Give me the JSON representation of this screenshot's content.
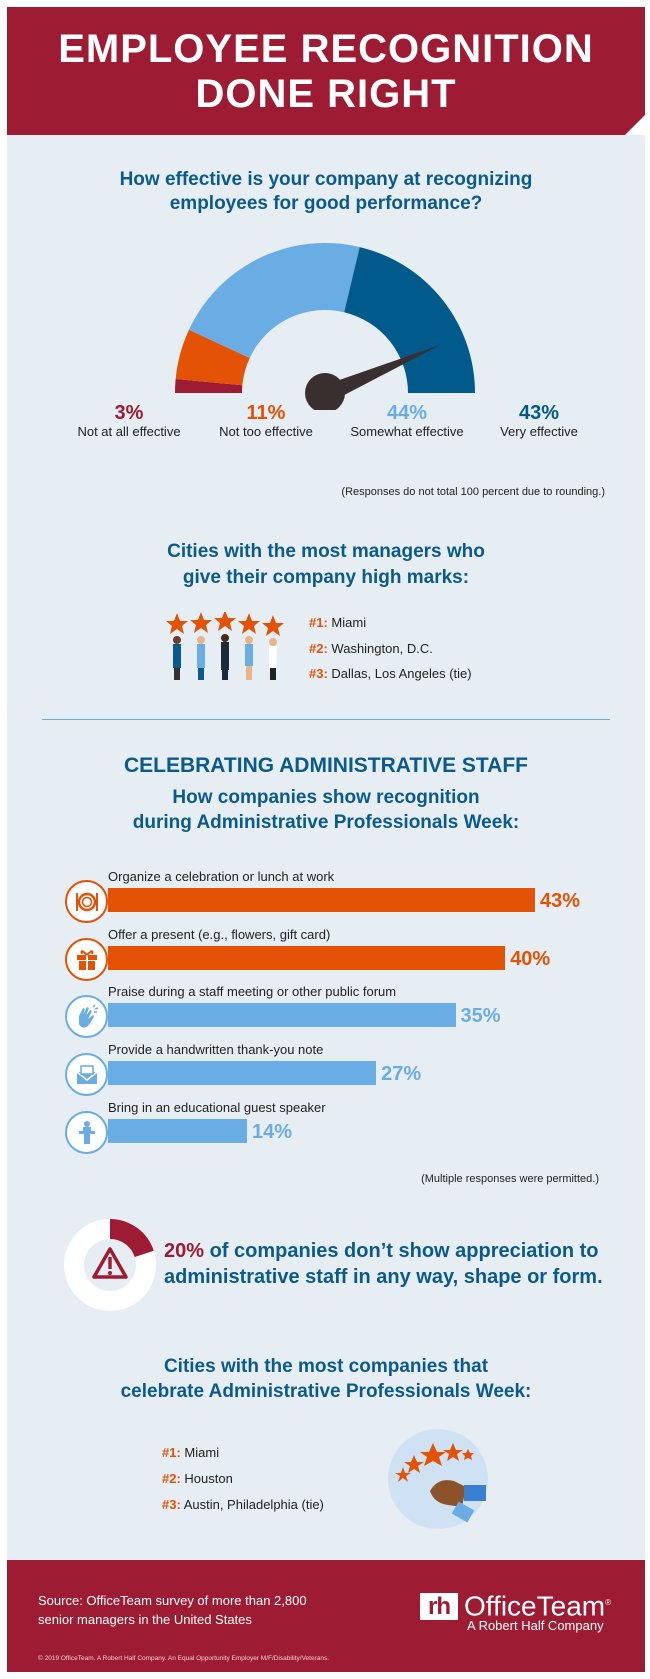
{
  "header": {
    "title_line1": "EMPLOYEE RECOGNITION",
    "title_line2": "DONE RIGHT"
  },
  "colors": {
    "crimson": "#9e1b34",
    "orange": "#e35205",
    "light_blue": "#6aace4",
    "dark_blue": "#005a8c",
    "heading_blue": "#0b5a8e",
    "background": "#e6edf3"
  },
  "gauge": {
    "question_line1": "How effective is your company at recognizing",
    "question_line2": "employees for good performance?",
    "items": [
      {
        "pct": "3%",
        "label": "Not at all effective",
        "color": "#9e1b34"
      },
      {
        "pct": "11%",
        "label": "Not too effective",
        "color": "#e35205"
      },
      {
        "pct": "44%",
        "label": "Somewhat effective",
        "color": "#6aace4"
      },
      {
        "pct": "43%",
        "label": "Very effective",
        "color": "#005a8c"
      }
    ],
    "note": "(Responses do not total 100 percent due to rounding.)"
  },
  "cities1": {
    "heading_line1": "Cities with the most managers who",
    "heading_line2": "give their company high marks:",
    "items": [
      {
        "rank": "#1:",
        "city": "Miami"
      },
      {
        "rank": "#2:",
        "city": "Washington, D.C."
      },
      {
        "rank": "#3:",
        "city": "Dallas, Los Angeles (tie)"
      }
    ]
  },
  "admin": {
    "section_title": "CELEBRATING ADMINISTRATIVE STAFF",
    "heading_line1": "How companies show recognition",
    "heading_line2": "during Administrative Professionals Week:",
    "note": "(Multiple responses were permitted.)",
    "bars": [
      {
        "label": "Organize a celebration or lunch at work",
        "pct": "43%",
        "icon": "plate-icon"
      },
      {
        "label": "Offer a present (e.g., flowers, gift card)",
        "pct": "40%",
        "icon": "gift-icon"
      },
      {
        "label": "Praise during a staff meeting or other public forum",
        "pct": "35%",
        "icon": "clapping-hands-icon"
      },
      {
        "label": "Provide a handwritten thank-you note",
        "pct": "27%",
        "icon": "envelope-icon"
      },
      {
        "label": "Bring in an educational guest speaker",
        "pct": "14%",
        "icon": "podium-speaker-icon"
      }
    ]
  },
  "stat": {
    "pct": "20%",
    "text_line1": " of companies don’t show appreciation to",
    "text_line2": "administrative staff in any way, shape or form.",
    "value": 20
  },
  "cities2": {
    "heading_line1": "Cities with the most companies that",
    "heading_line2": "celebrate Administrative Professionals Week:",
    "items": [
      {
        "rank": "#1:",
        "city": "Miami"
      },
      {
        "rank": "#2:",
        "city": "Houston"
      },
      {
        "rank": "#3:",
        "city": "Austin, Philadelphia (tie)"
      }
    ]
  },
  "footer": {
    "source_line1": "Source: OfficeTeam survey of more than 2,800",
    "source_line2": "senior managers in the United States",
    "logo_mark": "rh",
    "logo_name": "OfficeTeam",
    "logo_reg": "®",
    "logo_tagline": "A Robert Half Company",
    "copyright": "© 2019 OfficeTeam. A Robert Half Company. An Equal Opportunity Employer M/F/Disability/Veterans."
  },
  "chart_data": [
    {
      "type": "pie",
      "style": "semicircle-gauge",
      "categories": [
        "Not at all effective",
        "Not too effective",
        "Somewhat effective",
        "Very effective"
      ],
      "values": [
        3,
        11,
        44,
        43
      ],
      "colors": [
        "#9e1b34",
        "#e35205",
        "#6aace4",
        "#005a8c"
      ]
    },
    {
      "type": "bar",
      "orientation": "horizontal",
      "categories": [
        "Organize a celebration or lunch at work",
        "Offer a present (e.g., flowers, gift card)",
        "Praise during a staff meeting or other public forum",
        "Provide a handwritten thank-you note",
        "Bring in an educational guest speaker"
      ],
      "values": [
        43,
        40,
        35,
        27,
        14
      ],
      "colors": [
        "#e35205",
        "#e35205",
        "#6aace4",
        "#6aace4",
        "#6aace4"
      ]
    }
  ]
}
